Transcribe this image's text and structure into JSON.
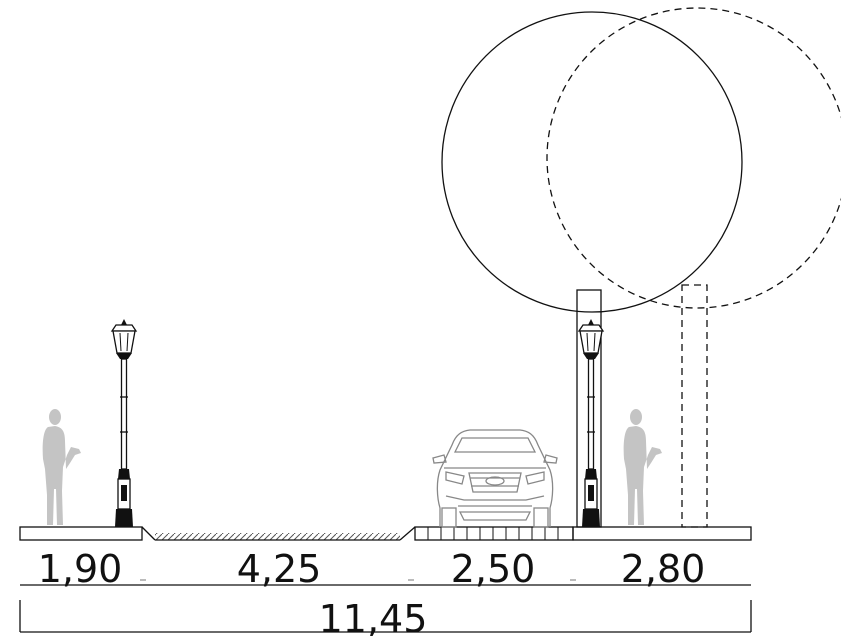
{
  "drawing": {
    "segment_dimensions": [
      "1,90",
      "4,25",
      "2,50",
      "2,80"
    ],
    "total_dimension": "11,45"
  },
  "colors": {
    "line": "#111111",
    "pedestrian": "#c4c4c4",
    "car": "#888888",
    "hatch": "#555555"
  },
  "icons": {
    "pedestrian": "person-silhouette-icon",
    "street_lamp": "lamp-post-icon",
    "car": "car-front-icon",
    "tree": "tree-canopy-icon"
  }
}
